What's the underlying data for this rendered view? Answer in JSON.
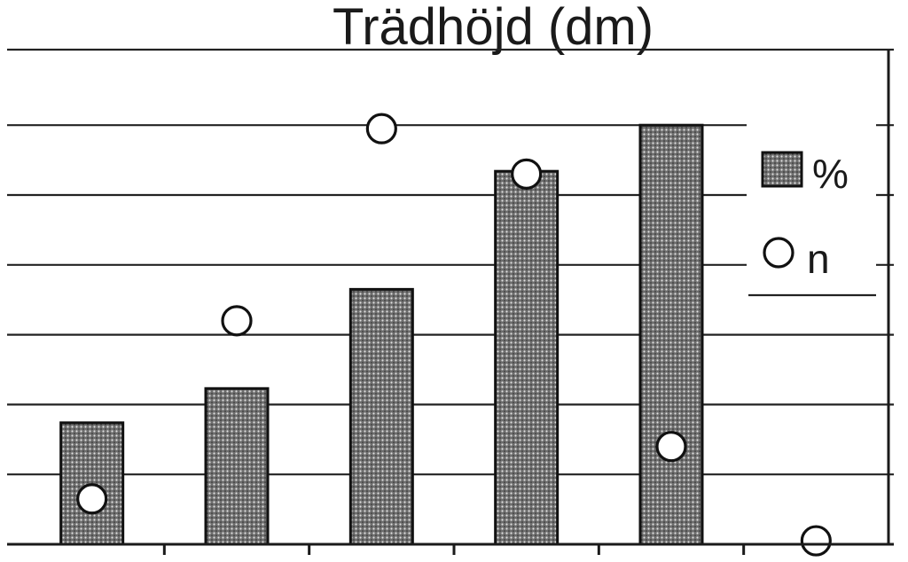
{
  "chart_data": {
    "type": "bar",
    "title": "Trädhöjd (dm)",
    "xlabel": "",
    "ylabel": "",
    "categories": [
      "",
      "",
      "",
      "",
      "",
      ""
    ],
    "ylim": [
      0,
      6
    ],
    "grid": true,
    "legend_position": "right",
    "series": [
      {
        "name": "%",
        "type": "bar",
        "values": [
          1.74,
          2.23,
          3.65,
          5.34,
          6.0,
          null
        ]
      },
      {
        "name": "n",
        "type": "scatter",
        "values": [
          0.65,
          3.2,
          5.95,
          5.3,
          1.4,
          0.05
        ]
      }
    ]
  },
  "colors": {
    "bar_fill": "#7a7a7a",
    "bar_dots": "#d9d9d9",
    "marker_fill": "#ffffff",
    "ink": "#111111"
  }
}
